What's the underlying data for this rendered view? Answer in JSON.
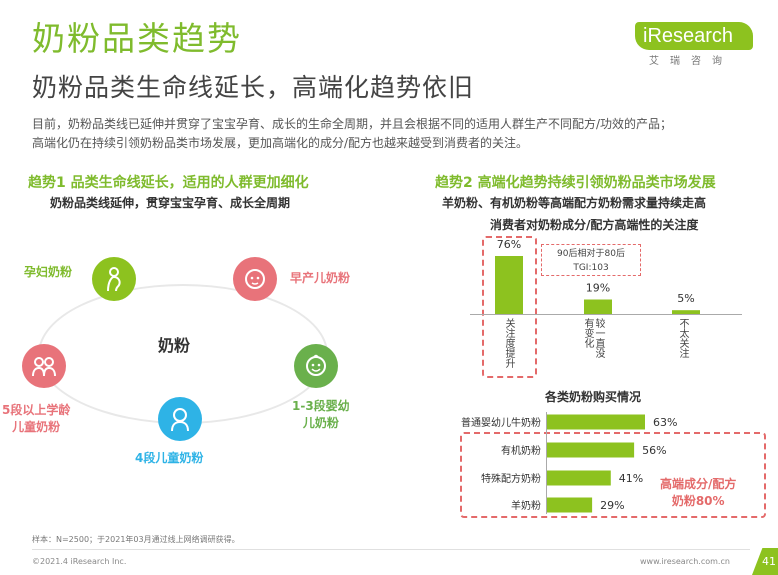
{
  "header": {
    "title": "奶粉品类趋势",
    "subtitle": "奶粉品类生命线延长，高端化趋势依旧",
    "intro_line1": "目前，奶粉品类线已延伸并贯穿了宝宝孕育、成长的生命全周期，并且会根据不同的适用人群生产不同配方/功效的产品；",
    "intro_line2": "高端化仍在持续引领奶粉品类市场发展，更加高端化的成分/配方也越来越受到消费者的关注。"
  },
  "logo": {
    "brand": "iResearch",
    "cn": "艾瑞咨询"
  },
  "left_section": {
    "title": "趋势1 品类生命线延长，适用的人群更加细化",
    "subtitle": "奶粉品类线延伸，贯穿宝宝孕育、成长全周期",
    "center": "奶粉",
    "nodes": [
      {
        "label": "孕妇奶粉",
        "color": "#8dc21f",
        "icon": "pregnant-woman-icon"
      },
      {
        "label": "早产儿奶粉",
        "color": "#e8737a",
        "icon": "baby-icon"
      },
      {
        "label": "1-3段婴幼儿奶粉",
        "line1": "1-3段婴幼",
        "line2": "儿奶粉",
        "color": "#6ab04c",
        "icon": "toddler-icon"
      },
      {
        "label": "4段儿童奶粉",
        "color": "#2eb3e6",
        "icon": "child-icon"
      },
      {
        "label": "5段以上学龄儿童奶粉",
        "line1": "5段以上学龄",
        "line2": "儿童奶粉",
        "color": "#e8737a",
        "icon": "school-kids-icon"
      }
    ]
  },
  "right_section": {
    "title": "趋势2 高端化趋势持续引领奶粉品类市场发展",
    "subtitle": "羊奶粉、有机奶粉等高端配方奶粉需求量持续走高",
    "tgi_line1": "90后相对于80后",
    "tgi_line2": "TGI:103",
    "callout_line1": "高端成分/配方",
    "callout_line2": "奶粉80%"
  },
  "chart_data": [
    {
      "type": "bar",
      "title": "消费者对奶粉成分/配方高端性的关注度",
      "categories": [
        "关注度提升",
        "较一直没有变化",
        "不太关注"
      ],
      "values": [
        76,
        19,
        5
      ],
      "value_labels": [
        "76%",
        "19%",
        "5%"
      ],
      "unit": "%",
      "color": "#8dc21f",
      "ylim": [
        0,
        100
      ]
    },
    {
      "type": "bar",
      "orientation": "horizontal",
      "title": "各类奶粉购买情况",
      "categories": [
        "普通婴幼儿牛奶粉",
        "有机奶粉",
        "特殊配方奶粉",
        "羊奶粉"
      ],
      "values": [
        63,
        56,
        41,
        29
      ],
      "value_labels": [
        "63%",
        "56%",
        "41%",
        "29%"
      ],
      "unit": "%",
      "color": "#8dc21f",
      "xlim": [
        0,
        100
      ]
    }
  ],
  "footer": {
    "sample_note": "样本：N=2500；于2021年03月通过线上网络调研获得。",
    "copyright": "©2021.4 iResearch Inc.",
    "url": "www.iresearch.com.cn",
    "page": "41"
  }
}
